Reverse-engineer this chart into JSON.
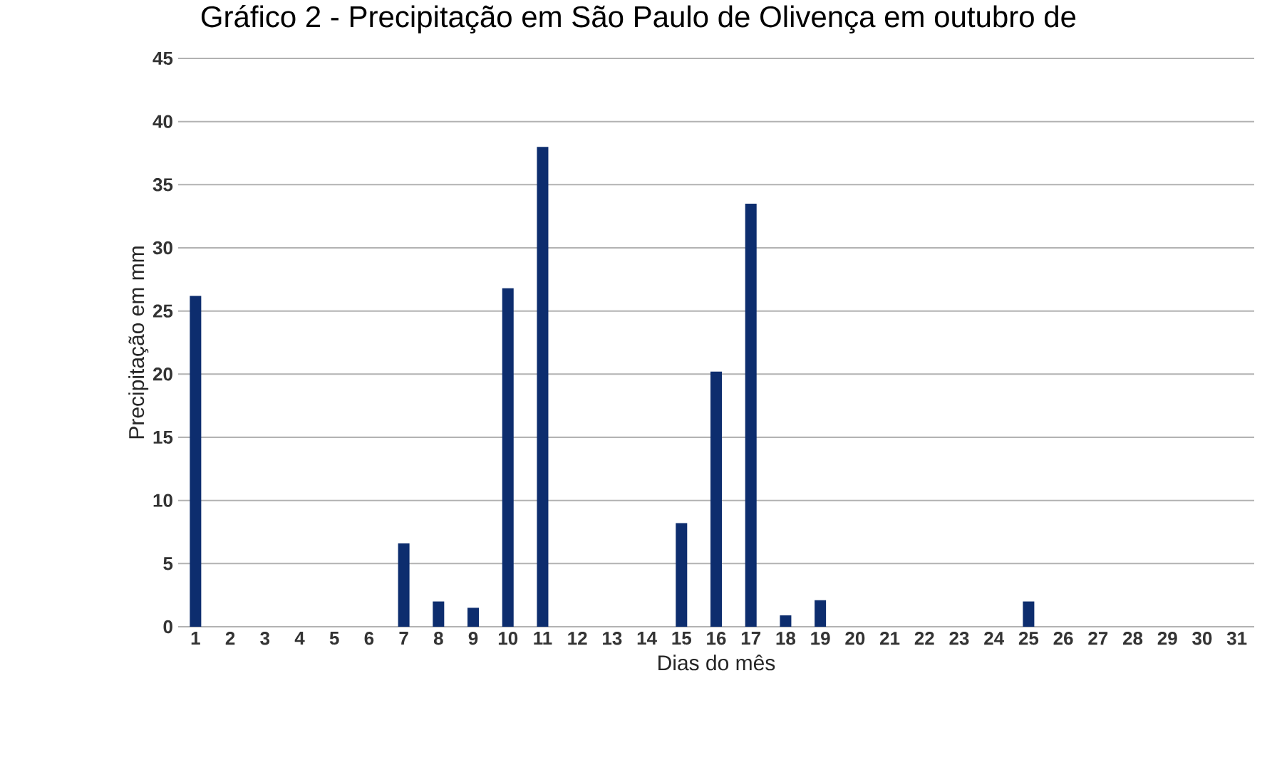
{
  "chart_data": {
    "type": "bar",
    "title": "Gráfico 2 - Precipitação em São Paulo de Olivença em outubro de",
    "xlabel": "Dias do mês",
    "ylabel": "Precipitação em mm",
    "categories": [
      "1",
      "2",
      "3",
      "4",
      "5",
      "6",
      "7",
      "8",
      "9",
      "10",
      "11",
      "12",
      "13",
      "14",
      "15",
      "16",
      "17",
      "18",
      "19",
      "20",
      "21",
      "22",
      "23",
      "24",
      "25",
      "26",
      "27",
      "28",
      "29",
      "30",
      "31"
    ],
    "values": [
      26.2,
      0,
      0,
      0,
      0,
      0,
      6.6,
      2.0,
      1.5,
      26.8,
      38.0,
      0,
      0,
      0,
      8.2,
      20.2,
      33.5,
      0.9,
      2.1,
      0,
      0,
      0,
      0,
      0,
      2.0,
      0,
      0,
      0,
      0,
      0,
      0
    ],
    "color": "#0d2d6e",
    "ylim": [
      0,
      45
    ],
    "yticks": [
      0,
      5,
      10,
      15,
      20,
      25,
      30,
      35,
      40,
      45
    ],
    "grid": "y"
  }
}
